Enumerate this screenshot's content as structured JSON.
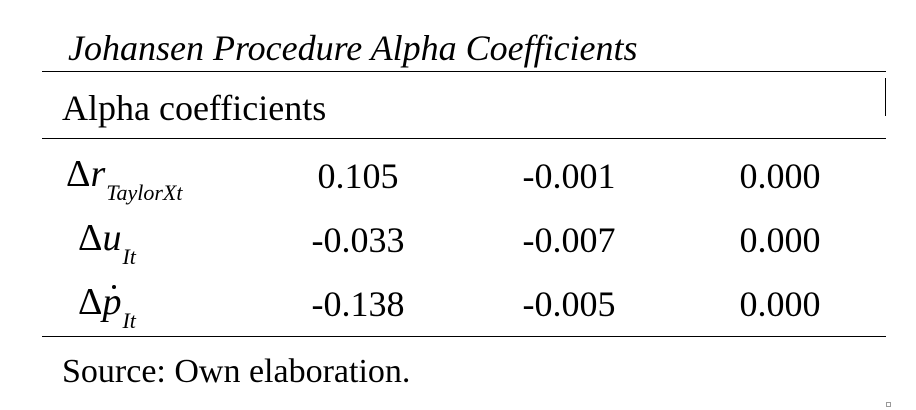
{
  "title": "Johansen Procedure Alpha Coefficients",
  "header": {
    "label": "Alpha coefficients"
  },
  "rows": [
    {
      "delta": "Δ",
      "symbol": "r",
      "subscript": "TaylorXt",
      "values": [
        "0.105",
        "-0.001",
        "0.000"
      ]
    },
    {
      "delta": "Δ",
      "symbol": "u",
      "subscript": "It",
      "values": [
        "-0.033",
        "-0.007",
        "0.000"
      ]
    },
    {
      "delta": "Δ",
      "symbol": "p",
      "subscript": "It",
      "values": [
        "-0.138",
        "-0.005",
        "0.000"
      ]
    }
  ],
  "footer": {
    "source": "Source: Own elaboration."
  }
}
